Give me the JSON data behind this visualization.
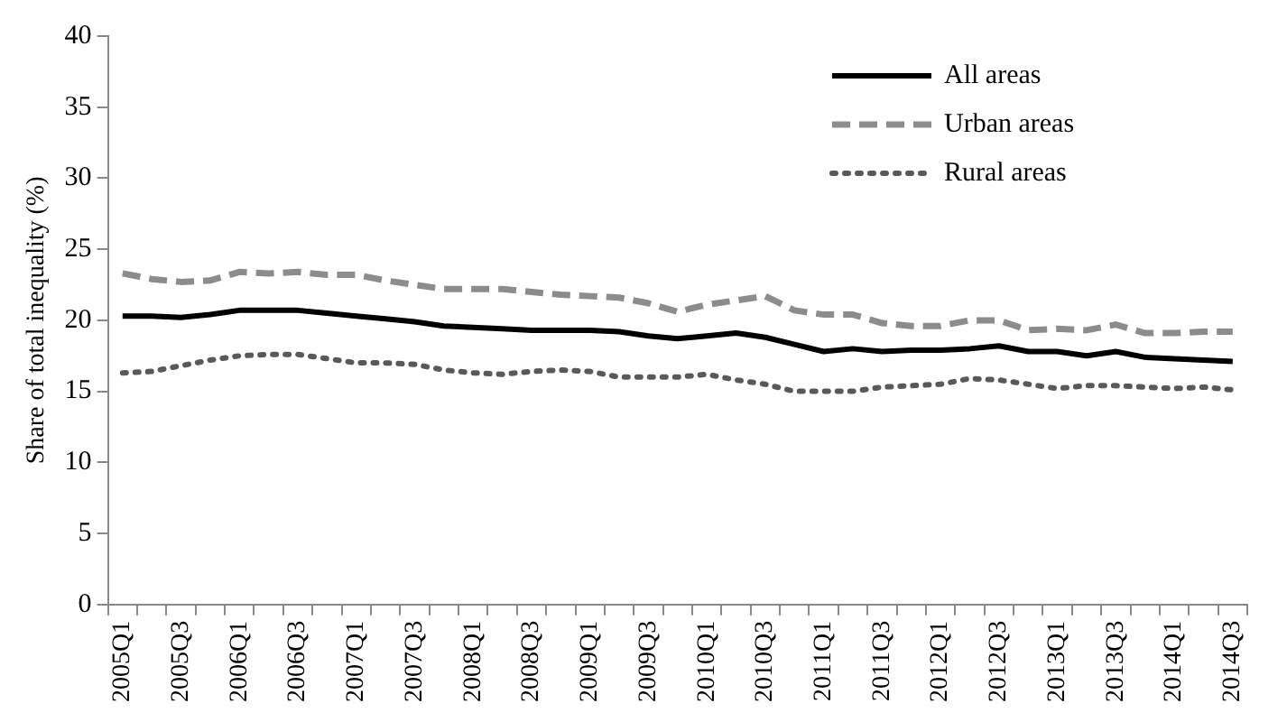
{
  "chart_data": {
    "type": "line",
    "ylabel": "Share of total inequality (%)",
    "categories": [
      "2005Q1",
      null,
      "2005Q3",
      null,
      "2006Q1",
      null,
      "2006Q3",
      null,
      "2007Q1",
      null,
      "2007Q3",
      null,
      "2008Q1",
      null,
      "2008Q3",
      null,
      "2009Q1",
      null,
      "2009Q3",
      null,
      "2010Q1",
      null,
      "2010Q3",
      null,
      "2011Q1",
      null,
      "2011Q3",
      null,
      "2012Q1",
      null,
      "2012Q3",
      null,
      "2013Q1",
      null,
      "2013Q3",
      null,
      "2014Q1",
      null,
      "2014Q3"
    ],
    "series": [
      {
        "name": "All areas",
        "color": "#000000",
        "line_style": "solid",
        "values": [
          20.3,
          20.3,
          20.2,
          20.4,
          20.7,
          20.7,
          20.7,
          20.5,
          20.3,
          20.1,
          19.9,
          19.6,
          19.5,
          19.4,
          19.3,
          19.3,
          19.3,
          19.2,
          18.9,
          18.7,
          18.9,
          19.1,
          18.8,
          18.3,
          17.8,
          18.0,
          17.8,
          17.9,
          17.9,
          18.0,
          18.2,
          17.8,
          17.8,
          17.5,
          17.8,
          17.4,
          17.3,
          17.2,
          17.1
        ]
      },
      {
        "name": "Urban areas",
        "color": "#8c8c8c",
        "line_style": "dashed",
        "values": [
          23.3,
          22.9,
          22.7,
          22.8,
          23.4,
          23.3,
          23.4,
          23.2,
          23.2,
          22.8,
          22.5,
          22.2,
          22.2,
          22.2,
          22.0,
          21.8,
          21.7,
          21.6,
          21.2,
          20.6,
          21.1,
          21.4,
          21.7,
          20.7,
          20.4,
          20.4,
          19.8,
          19.6,
          19.6,
          20.0,
          20.0,
          19.3,
          19.4,
          19.3,
          19.7,
          19.1,
          19.1,
          19.2,
          19.2
        ]
      },
      {
        "name": "Rural areas",
        "color": "#595959",
        "line_style": "dotted",
        "values": [
          16.3,
          16.4,
          16.8,
          17.2,
          17.5,
          17.6,
          17.6,
          17.3,
          17.0,
          17.0,
          16.9,
          16.5,
          16.3,
          16.2,
          16.4,
          16.5,
          16.4,
          16.0,
          16.0,
          16.0,
          16.2,
          15.8,
          15.5,
          15.0,
          15.0,
          15.0,
          15.3,
          15.4,
          15.5,
          15.9,
          15.8,
          15.5,
          15.2,
          15.4,
          15.4,
          15.3,
          15.2,
          15.3,
          15.1
        ]
      }
    ],
    "ylim": [
      0,
      40
    ],
    "yticks": [
      0,
      5,
      10,
      15,
      20,
      25,
      30,
      35,
      40
    ],
    "grid": false,
    "legend": "top right",
    "marker": "none"
  }
}
